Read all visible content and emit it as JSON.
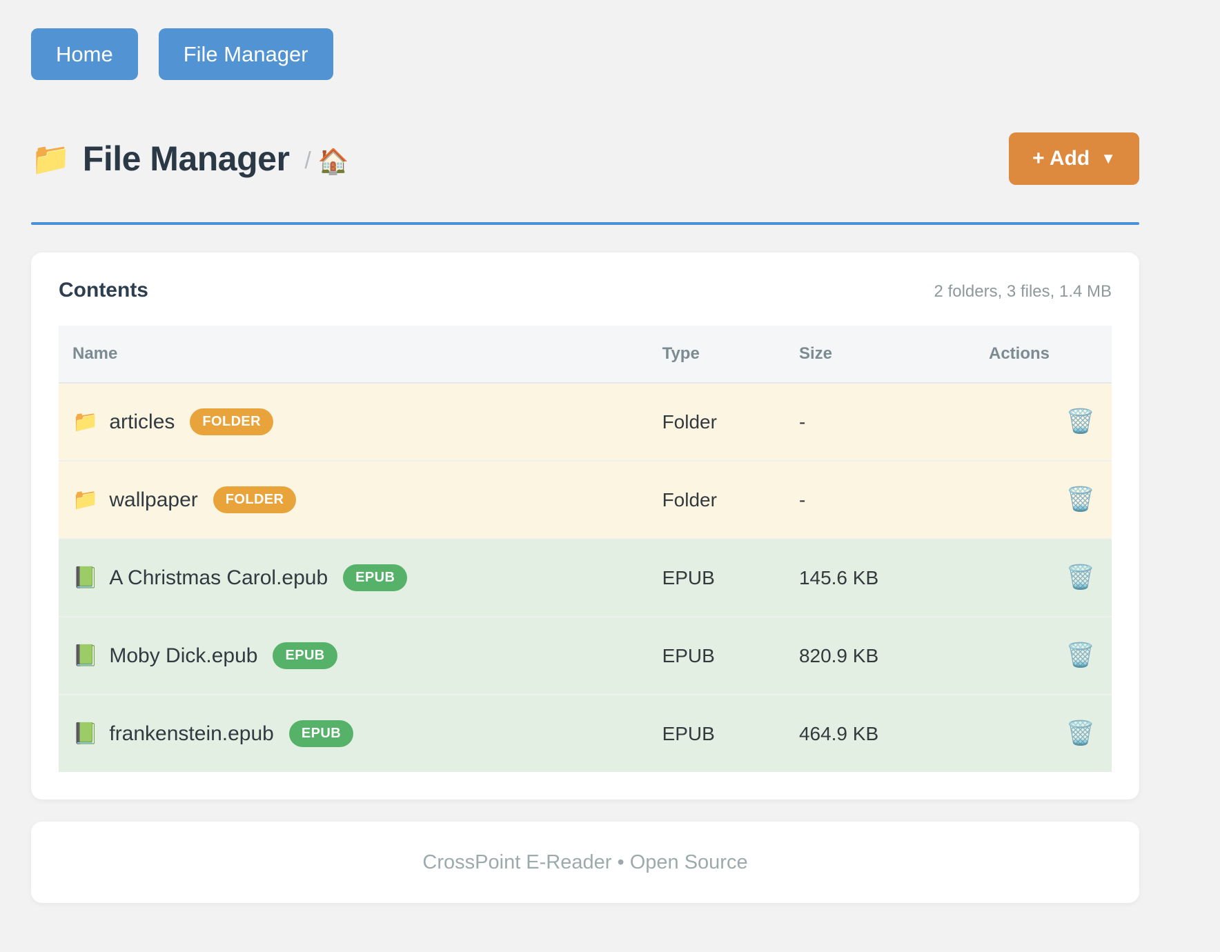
{
  "nav": {
    "items": [
      {
        "label": "Home"
      },
      {
        "label": "File Manager"
      }
    ]
  },
  "header": {
    "title_icon": "📁",
    "title": "File Manager",
    "breadcrumb_separator": "/",
    "breadcrumb_home_icon": "🏠",
    "add_button": {
      "label": "+ Add",
      "caret": "▼"
    }
  },
  "contents": {
    "heading": "Contents",
    "summary": "2 folders, 3 files, 1.4 MB",
    "table": {
      "columns": [
        "Name",
        "Type",
        "Size",
        "Actions"
      ],
      "action_icon": "🗑️",
      "rows": [
        {
          "kind": "folder",
          "icon": "📁",
          "name": "articles",
          "badge": "FOLDER",
          "type": "Folder",
          "size": "-"
        },
        {
          "kind": "folder",
          "icon": "📁",
          "name": "wallpaper",
          "badge": "FOLDER",
          "type": "Folder",
          "size": "-"
        },
        {
          "kind": "file",
          "icon": "📗",
          "name": "A Christmas Carol.epub",
          "badge": "EPUB",
          "type": "EPUB",
          "size": "145.6 KB"
        },
        {
          "kind": "file",
          "icon": "📗",
          "name": "Moby Dick.epub",
          "badge": "EPUB",
          "type": "EPUB",
          "size": "820.9 KB"
        },
        {
          "kind": "file",
          "icon": "📗",
          "name": "frankenstein.epub",
          "badge": "EPUB",
          "type": "EPUB",
          "size": "464.9 KB"
        }
      ]
    }
  },
  "footer": {
    "text": "CrossPoint E-Reader • Open Source"
  },
  "colors": {
    "page_background": "#f2f2f3",
    "nav_button_blue": "#5193d3",
    "divider_blue": "#4a90d9",
    "add_button_orange": "#dd8a3e",
    "folder_row_background": "#fcf5e1",
    "epub_row_background": "#e3efe3",
    "folder_badge": "#e9a33b",
    "epub_badge": "#57b269",
    "title_text": "#2b3947",
    "muted_text": "#8e999b"
  }
}
